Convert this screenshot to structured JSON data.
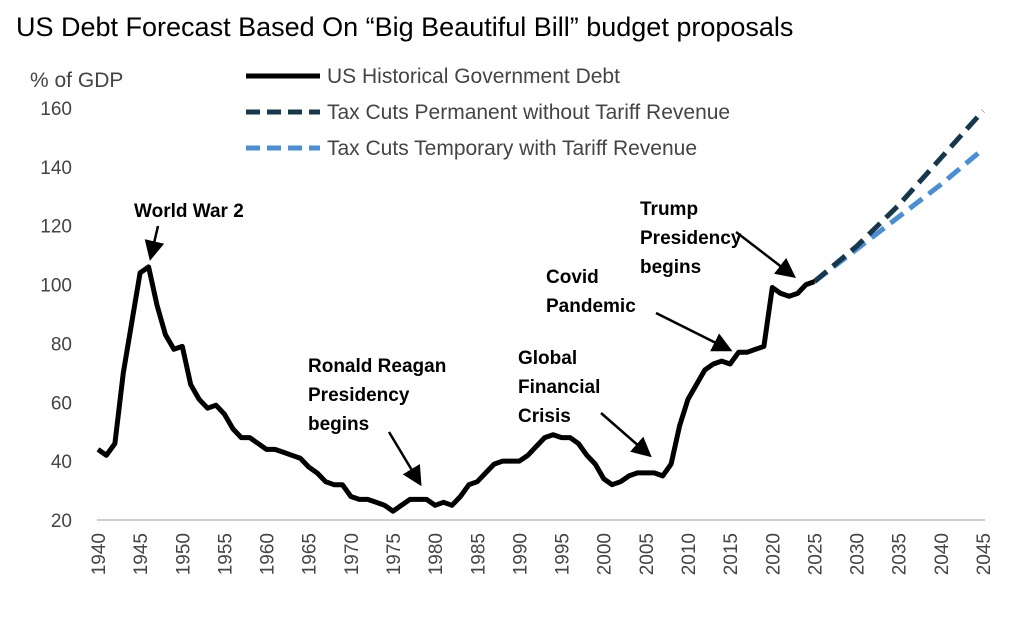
{
  "title": "US Debt Forecast Based On “Big Beautiful Bill” budget proposals",
  "chart_data": {
    "type": "line",
    "title": "US Debt Forecast Based On “Big Beautiful Bill” budget proposals",
    "xlabel": "",
    "ylabel": "% of GDP",
    "xlim": [
      1940,
      2045
    ],
    "ylim": [
      20,
      160
    ],
    "yticks": [
      20,
      40,
      60,
      80,
      100,
      120,
      140,
      160
    ],
    "xticks": [
      1940,
      1945,
      1950,
      1955,
      1960,
      1965,
      1970,
      1975,
      1980,
      1985,
      1990,
      1995,
      2000,
      2005,
      2010,
      2015,
      2020,
      2025,
      2030,
      2035,
      2040,
      2045
    ],
    "grid": false,
    "legend_position": "top",
    "series": [
      {
        "name": "US Historical Government Debt",
        "color": "#000000",
        "style": "solid",
        "x": [
          1940,
          1941,
          1942,
          1943,
          1944,
          1945,
          1946,
          1947,
          1948,
          1949,
          1950,
          1951,
          1952,
          1953,
          1954,
          1955,
          1956,
          1957,
          1958,
          1959,
          1960,
          1961,
          1962,
          1963,
          1964,
          1965,
          1966,
          1967,
          1968,
          1969,
          1970,
          1971,
          1972,
          1973,
          1974,
          1975,
          1976,
          1977,
          1978,
          1979,
          1980,
          1981,
          1982,
          1983,
          1984,
          1985,
          1986,
          1987,
          1988,
          1989,
          1990,
          1991,
          1992,
          1993,
          1994,
          1995,
          1996,
          1997,
          1998,
          1999,
          2000,
          2001,
          2002,
          2003,
          2004,
          2005,
          2006,
          2007,
          2008,
          2009,
          2010,
          2011,
          2012,
          2013,
          2014,
          2015,
          2016,
          2017,
          2018,
          2019,
          2020,
          2021,
          2022,
          2023,
          2024,
          2025
        ],
        "values": [
          44,
          42,
          46,
          70,
          87,
          104,
          106,
          93,
          83,
          78,
          79,
          66,
          61,
          58,
          59,
          56,
          51,
          48,
          48,
          46,
          44,
          44,
          43,
          42,
          41,
          38,
          36,
          33,
          32,
          32,
          28,
          27,
          27,
          26,
          25,
          23,
          25,
          27,
          27,
          27,
          25,
          26,
          25,
          28,
          32,
          33,
          36,
          39,
          40,
          40,
          40,
          42,
          45,
          48,
          49,
          48,
          48,
          46,
          42,
          39,
          34,
          32,
          33,
          35,
          36,
          36,
          36,
          35,
          39,
          52,
          61,
          66,
          71,
          73,
          74,
          73,
          77,
          77,
          78,
          79,
          99,
          97,
          96,
          97,
          100,
          101
        ]
      },
      {
        "name": "Tax Cuts Permanent without Tariff Revenue",
        "color": "#17384c",
        "style": "dashed",
        "x": [
          2025,
          2030,
          2035,
          2040,
          2045
        ],
        "values": [
          101,
          113,
          127,
          143,
          159
        ]
      },
      {
        "name": "Tax Cuts Temporary with Tariff Revenue",
        "color": "#4a8ed6",
        "style": "dashed",
        "x": [
          2025,
          2030,
          2035,
          2040,
          2045
        ],
        "values": [
          101,
          112,
          123,
          134,
          146
        ]
      }
    ],
    "annotations": [
      {
        "lines": [
          "World War 2"
        ],
        "x": 1946,
        "y": 106
      },
      {
        "lines": [
          "Ronald Reagan",
          "Presidency",
          "begins"
        ],
        "x": 1980,
        "y": 25
      },
      {
        "lines": [
          "Global",
          "Financial",
          "Crisis"
        ],
        "x": 2008,
        "y": 38
      },
      {
        "lines": [
          "Covid",
          "Pandemic"
        ],
        "x": 2016,
        "y": 76
      },
      {
        "lines": [
          "Trump",
          "Presidency",
          "begins"
        ],
        "x": 2022,
        "y": 97
      }
    ]
  }
}
